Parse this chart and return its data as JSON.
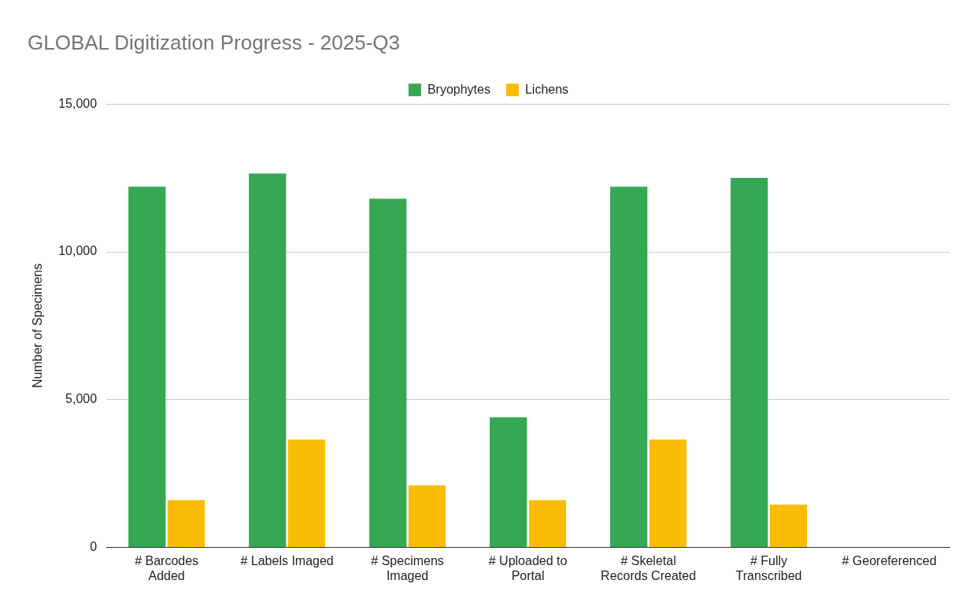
{
  "chart_data": {
    "type": "bar",
    "title": "GLOBAL Digitization Progress - 2025-Q3",
    "ylabel": "Number of Specimens",
    "categories": [
      "# Barcodes Added",
      "# Labels Imaged",
      "# Specimens Imaged",
      "# Uploaded to Portal",
      "# Skeletal Records Created",
      "# Fully Transcribed",
      "# Georeferenced"
    ],
    "series": [
      {
        "name": "Bryophytes",
        "color": "#34a853",
        "values": [
          12200,
          12650,
          11800,
          4400,
          12200,
          12500,
          0
        ]
      },
      {
        "name": "Lichens",
        "color": "#fbbc04",
        "values": [
          1600,
          3650,
          2100,
          1600,
          3650,
          1450,
          0
        ]
      }
    ],
    "ylim": [
      0,
      15000
    ],
    "yticks": [
      0,
      {
        "value": 5000,
        "label": "5,000"
      },
      {
        "value": 10000,
        "label": "10,000"
      },
      {
        "value": 15000,
        "label": "15,000"
      }
    ],
    "grid": "y",
    "legend": "top"
  }
}
